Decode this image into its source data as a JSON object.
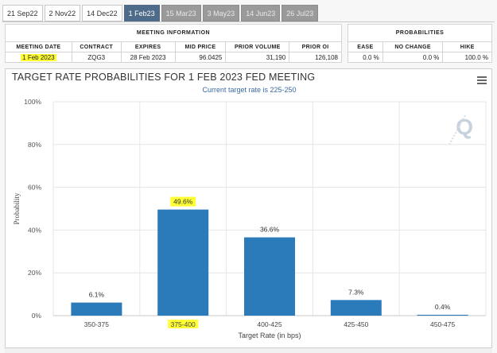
{
  "tabs": [
    {
      "label": "21 Sep22",
      "state": "normal"
    },
    {
      "label": "2 Nov22",
      "state": "normal"
    },
    {
      "label": "14 Dec22",
      "state": "normal"
    },
    {
      "label": "1 Feb23",
      "state": "active"
    },
    {
      "label": "15 Mar23",
      "state": "disabled"
    },
    {
      "label": "3 May23",
      "state": "disabled"
    },
    {
      "label": "14 Jun23",
      "state": "disabled"
    },
    {
      "label": "26 Jul23",
      "state": "disabled"
    }
  ],
  "meeting_info": {
    "group_title": "MEETING INFORMATION",
    "headers": [
      "MEETING DATE",
      "CONTRACT",
      "EXPIRES",
      "MID PRICE",
      "PRIOR VOLUME",
      "PRIOR OI"
    ],
    "row": {
      "meeting_date": "1 Feb 2023",
      "contract": "ZQG3",
      "expires": "28 Feb 2023",
      "mid_price": "96.0425",
      "prior_volume": "31,190",
      "prior_oi": "126,108"
    }
  },
  "probabilities": {
    "group_title": "PROBABILITIES",
    "headers": [
      "EASE",
      "NO CHANGE",
      "HIKE"
    ],
    "row": {
      "ease": "0.0 %",
      "no_change": "0.0 %",
      "hike": "100.0 %"
    }
  },
  "chart": {
    "title": "TARGET RATE PROBABILITIES FOR 1 FEB 2023 FED MEETING",
    "subtitle": "Current target rate is 225-250",
    "watermark": "Q",
    "highlight_color": "#ffff33",
    "bar_color": "#2b7bba"
  },
  "chart_data": {
    "type": "bar",
    "title": "TARGET RATE PROBABILITIES FOR 1 FEB 2023 FED MEETING",
    "subtitle": "Current target rate is 225-250",
    "xlabel": "Target Rate (in bps)",
    "ylabel": "Probability",
    "categories": [
      "350-375",
      "375-400",
      "400-425",
      "425-450",
      "450-475"
    ],
    "values": [
      6.1,
      49.6,
      36.6,
      7.3,
      0.4
    ],
    "data_labels": [
      "6.1%",
      "49.6%",
      "36.6%",
      "7.3%",
      "0.4%"
    ],
    "highlighted_category": "375-400",
    "y_ticks": [
      "0%",
      "20%",
      "40%",
      "60%",
      "80%",
      "100%"
    ],
    "ylim": [
      0,
      100
    ],
    "grid": true,
    "legend": "none"
  }
}
